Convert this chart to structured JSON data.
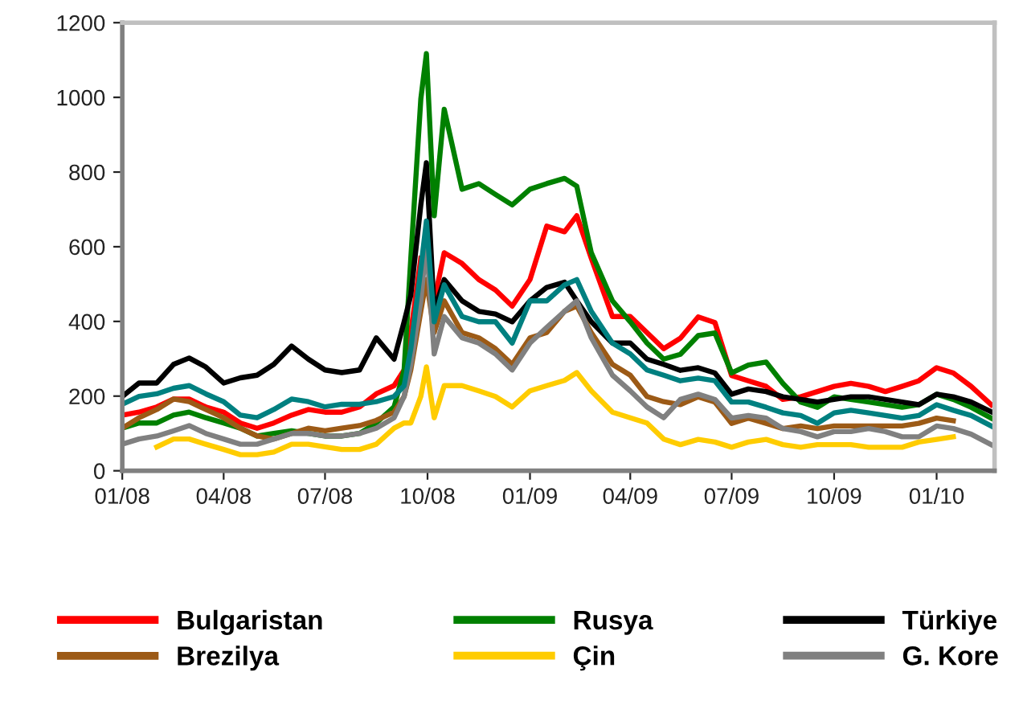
{
  "chart_data": {
    "type": "line",
    "x": [
      "2008-01-01",
      "2008-01-16",
      "2008-02-01",
      "2008-02-16",
      "2008-03-01",
      "2008-03-16",
      "2008-04-01",
      "2008-04-16",
      "2008-05-01",
      "2008-05-16",
      "2008-06-01",
      "2008-06-16",
      "2008-07-01",
      "2008-07-16",
      "2008-08-01",
      "2008-08-16",
      "2008-09-01",
      "2008-09-10",
      "2008-09-16",
      "2008-09-25",
      "2008-09-30",
      "2008-10-07",
      "2008-10-16",
      "2008-11-01",
      "2008-11-16",
      "2008-12-01",
      "2008-12-16",
      "2009-01-01",
      "2009-01-16",
      "2009-02-01",
      "2009-02-12",
      "2009-02-25",
      "2009-03-16",
      "2009-04-01",
      "2009-04-16",
      "2009-05-01",
      "2009-05-16",
      "2009-06-01",
      "2009-06-16",
      "2009-07-01",
      "2009-07-16",
      "2009-08-01",
      "2009-08-16",
      "2009-09-01",
      "2009-09-16",
      "2009-10-01",
      "2009-10-16",
      "2009-11-01",
      "2009-11-16",
      "2009-12-01",
      "2009-12-16",
      "2010-01-01",
      "2010-01-16",
      "2010-02-01",
      "2010-02-19"
    ],
    "series": [
      {
        "name": "Bulgaristan",
        "color": "#ff0000",
        "values": [
          149,
          157,
          171,
          192,
          192,
          171,
          157,
          128,
          114,
          128,
          149,
          164,
          157,
          157,
          171,
          206,
          228,
          270,
          370,
          569,
          null,
          455,
          584,
          555,
          512,
          484,
          441,
          512,
          655,
          640,
          683,
          569,
          413,
          413,
          370,
          327,
          355,
          412,
          397,
          255,
          241,
          226,
          191,
          198,
          212,
          226,
          234,
          226,
          212,
          226,
          241,
          276,
          262,
          226,
          177
        ]
      },
      {
        "name": "Rusya",
        "color": "#008000",
        "values": [
          114,
          128,
          128,
          149,
          157,
          142,
          128,
          114,
          93,
          100,
          107,
          100,
          93,
          93,
          100,
          128,
          171,
          270,
          569,
          996,
          1117,
          683,
          968,
          754,
          769,
          740,
          712,
          754,
          769,
          783,
          762,
          584,
          455,
          399,
          342,
          299,
          312,
          362,
          369,
          262,
          283,
          291,
          234,
          184,
          170,
          198,
          191,
          184,
          177,
          170,
          177,
          205,
          191,
          170,
          141
        ]
      },
      {
        "name": "Türkiye",
        "color": "#000000",
        "values": [
          199,
          235,
          235,
          285,
          302,
          278,
          235,
          249,
          256,
          285,
          334,
          299,
          270,
          263,
          270,
          356,
          299,
          399,
          470,
          712,
          825,
          427,
          512,
          455,
          427,
          420,
          399,
          455,
          491,
          505,
          455,
          399,
          342,
          342,
          299,
          285,
          269,
          276,
          262,
          205,
          219,
          212,
          198,
          191,
          184,
          191,
          198,
          198,
          191,
          184,
          177,
          205,
          198,
          184,
          158
        ]
      },
      {
        "name": "Brezilya",
        "color": "#9c5a16",
        "values": [
          114,
          142,
          164,
          192,
          185,
          164,
          142,
          114,
          93,
          85,
          100,
          114,
          107,
          114,
          121,
          135,
          157,
          199,
          270,
          427,
          512,
          370,
          455,
          370,
          356,
          327,
          285,
          356,
          370,
          427,
          441,
          370,
          285,
          256,
          199,
          185,
          177,
          198,
          184,
          127,
          141,
          127,
          113,
          120,
          113,
          120,
          120,
          120,
          120,
          120,
          127,
          141,
          134,
          null,
          null
        ]
      },
      {
        "name": "Çin",
        "color": "#ffcc00",
        "values": [
          null,
          null,
          64,
          85,
          85,
          71,
          57,
          43,
          43,
          50,
          71,
          71,
          64,
          57,
          57,
          71,
          114,
          128,
          128,
          199,
          278,
          142,
          228,
          228,
          214,
          199,
          171,
          214,
          228,
          242,
          263,
          214,
          157,
          142,
          128,
          85,
          70,
          84,
          77,
          63,
          77,
          84,
          70,
          63,
          70,
          70,
          70,
          63,
          63,
          63,
          77,
          84,
          91,
          null,
          null
        ]
      },
      {
        "name": "G. Kore",
        "color": "#808080",
        "values": [
          71,
          85,
          93,
          107,
          121,
          100,
          85,
          71,
          71,
          85,
          100,
          100,
          93,
          93,
          100,
          114,
          142,
          199,
          285,
          455,
          612,
          313,
          413,
          356,
          342,
          313,
          270,
          342,
          384,
          427,
          455,
          356,
          256,
          214,
          171,
          142,
          191,
          205,
          191,
          141,
          148,
          141,
          113,
          105,
          91,
          105,
          105,
          113,
          105,
          91,
          91,
          120,
          113,
          98,
          70
        ]
      },
      {
        "color": "#008080",
        "values": [
          178,
          199,
          206,
          221,
          228,
          206,
          185,
          149,
          142,
          164,
          192,
          185,
          171,
          178,
          178,
          185,
          199,
          228,
          327,
          541,
          669,
          399,
          498,
          413,
          399,
          399,
          342,
          455,
          455,
          498,
          512,
          427,
          342,
          313,
          270,
          256,
          241,
          248,
          241,
          184,
          184,
          170,
          155,
          148,
          127,
          155,
          162,
          155,
          148,
          141,
          148,
          177,
          162,
          148,
          120
        ]
      }
    ],
    "xlim": [
      "2008-01-01",
      "2010-02-22"
    ],
    "xticks": [
      {
        "value": "2008-01",
        "label": "01/08"
      },
      {
        "value": "2008-04",
        "label": "04/08"
      },
      {
        "value": "2008-07",
        "label": "07/08"
      },
      {
        "value": "2008-10",
        "label": "10/08"
      },
      {
        "value": "2009-01",
        "label": "01/09"
      },
      {
        "value": "2009-04",
        "label": "04/09"
      },
      {
        "value": "2009-07",
        "label": "07/09"
      },
      {
        "value": "2009-10",
        "label": "10/09"
      },
      {
        "value": "2010-01",
        "label": "01/10"
      }
    ],
    "ylim": [
      0,
      1200
    ],
    "yticks": [
      0,
      200,
      400,
      600,
      800,
      1000,
      1200
    ],
    "legend": "bottom",
    "marker": "none",
    "line_style": "solid"
  }
}
